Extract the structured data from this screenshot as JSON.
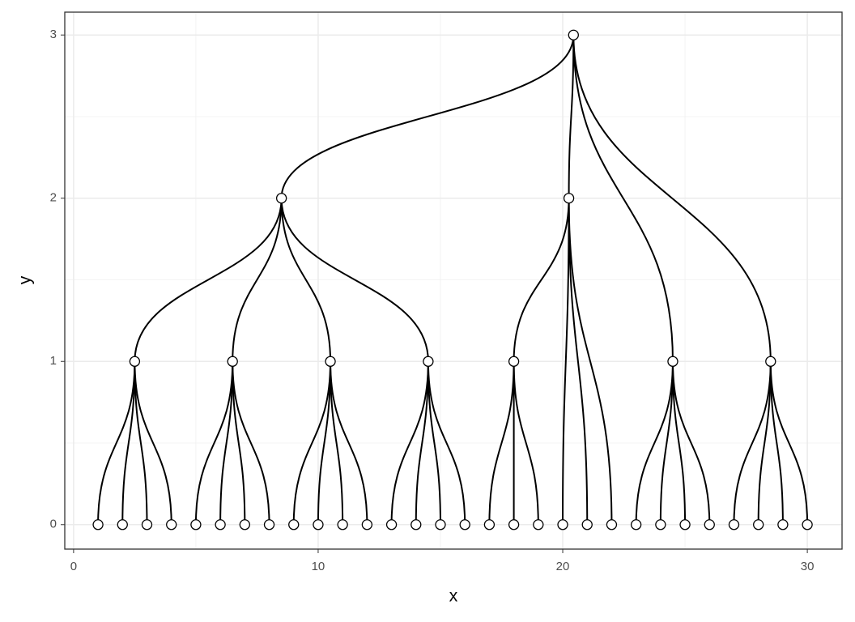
{
  "chart_data": {
    "type": "tree",
    "x_label": "x",
    "y_label": "y",
    "xlim": [
      -0.36,
      31.42
    ],
    "ylim": [
      -0.15,
      3.14
    ],
    "xticks": [
      0,
      10,
      20,
      30
    ],
    "yticks": [
      0,
      1,
      2,
      3
    ],
    "grid": true,
    "nodes": [
      {
        "x": 1,
        "y": 0
      },
      {
        "x": 2,
        "y": 0
      },
      {
        "x": 3,
        "y": 0
      },
      {
        "x": 4,
        "y": 0
      },
      {
        "x": 5,
        "y": 0
      },
      {
        "x": 6,
        "y": 0
      },
      {
        "x": 7,
        "y": 0
      },
      {
        "x": 8,
        "y": 0
      },
      {
        "x": 9,
        "y": 0
      },
      {
        "x": 10,
        "y": 0
      },
      {
        "x": 11,
        "y": 0
      },
      {
        "x": 12,
        "y": 0
      },
      {
        "x": 13,
        "y": 0
      },
      {
        "x": 14,
        "y": 0
      },
      {
        "x": 15,
        "y": 0
      },
      {
        "x": 16,
        "y": 0
      },
      {
        "x": 17,
        "y": 0
      },
      {
        "x": 18,
        "y": 0
      },
      {
        "x": 19,
        "y": 0
      },
      {
        "x": 20,
        "y": 0
      },
      {
        "x": 21,
        "y": 0
      },
      {
        "x": 22,
        "y": 0
      },
      {
        "x": 23,
        "y": 0
      },
      {
        "x": 24,
        "y": 0
      },
      {
        "x": 25,
        "y": 0
      },
      {
        "x": 26,
        "y": 0
      },
      {
        "x": 27,
        "y": 0
      },
      {
        "x": 28,
        "y": 0
      },
      {
        "x": 29,
        "y": 0
      },
      {
        "x": 30,
        "y": 0
      },
      {
        "x": 2.5,
        "y": 1
      },
      {
        "x": 6.5,
        "y": 1
      },
      {
        "x": 10.5,
        "y": 1
      },
      {
        "x": 14.5,
        "y": 1
      },
      {
        "x": 18,
        "y": 1
      },
      {
        "x": 24.5,
        "y": 1
      },
      {
        "x": 28.5,
        "y": 1
      },
      {
        "x": 8.5,
        "y": 2
      },
      {
        "x": 20.25,
        "y": 2
      },
      {
        "x": 20.44,
        "y": 3
      }
    ],
    "edges": [
      [
        39,
        37
      ],
      [
        39,
        38
      ],
      [
        39,
        35
      ],
      [
        39,
        36
      ],
      [
        37,
        30
      ],
      [
        37,
        31
      ],
      [
        37,
        32
      ],
      [
        37,
        33
      ],
      [
        38,
        34
      ],
      [
        38,
        19
      ],
      [
        38,
        20
      ],
      [
        38,
        21
      ],
      [
        30,
        0
      ],
      [
        30,
        1
      ],
      [
        30,
        2
      ],
      [
        30,
        3
      ],
      [
        31,
        4
      ],
      [
        31,
        5
      ],
      [
        31,
        6
      ],
      [
        31,
        7
      ],
      [
        32,
        8
      ],
      [
        32,
        9
      ],
      [
        32,
        10
      ],
      [
        32,
        11
      ],
      [
        33,
        12
      ],
      [
        33,
        13
      ],
      [
        33,
        14
      ],
      [
        33,
        15
      ],
      [
        34,
        16
      ],
      [
        34,
        17
      ],
      [
        34,
        18
      ],
      [
        35,
        22
      ],
      [
        35,
        23
      ],
      [
        35,
        24
      ],
      [
        35,
        25
      ],
      [
        36,
        26
      ],
      [
        36,
        27
      ],
      [
        36,
        28
      ],
      [
        36,
        29
      ]
    ]
  }
}
